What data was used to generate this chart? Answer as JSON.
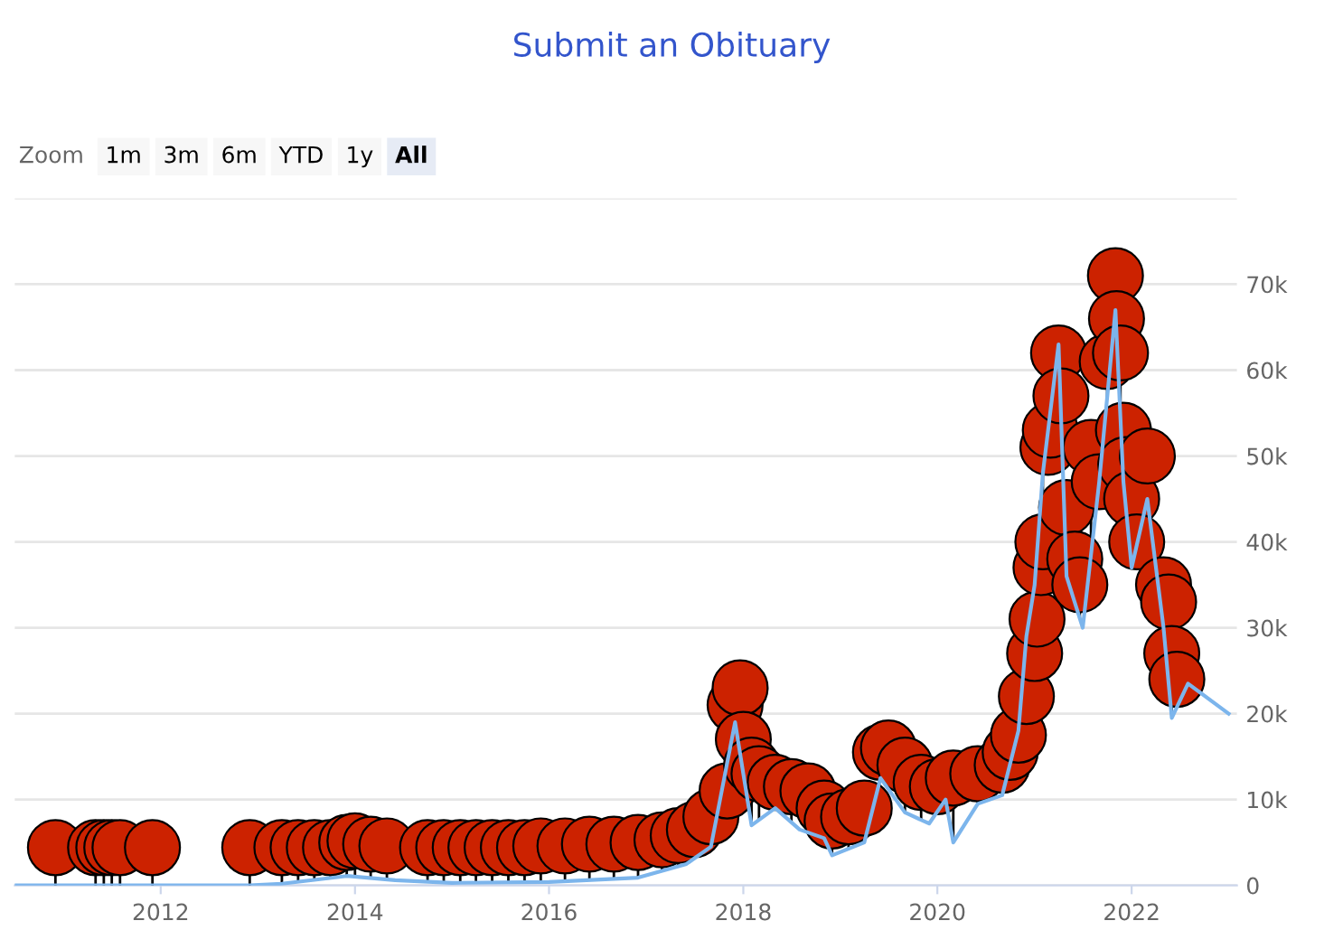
{
  "chart_data": {
    "type": "line",
    "title": "Submit an Obituary",
    "annotations": [
      "Zoom",
      "1m",
      "3m",
      "6m",
      "YTD",
      "1y",
      "All"
    ],
    "xlim": [
      "2010-07",
      "2023-02"
    ],
    "xticks": [
      "2012",
      "2014",
      "2016",
      "2018",
      "2020",
      "2022"
    ],
    "ylim": [
      0,
      80000
    ],
    "yticks": [
      0,
      {
        "value": 10000,
        "label": "10k"
      },
      {
        "value": 20000,
        "label": "20k"
      },
      {
        "value": 30000,
        "label": "30k"
      },
      {
        "value": 40000,
        "label": "40k"
      },
      {
        "value": 50000,
        "label": "50k"
      },
      {
        "value": 60000,
        "label": "60k"
      },
      {
        "value": 70000,
        "label": "70k"
      },
      {
        "value": 80000,
        "label": null
      }
    ],
    "grid": "y",
    "legend": false,
    "series": [
      {
        "color": "#7cb5ec",
        "marker": "none",
        "x": [
          "2010-07",
          "2011-06",
          "2011-12",
          "2012-12",
          "2013-04",
          "2013-12",
          "2014-06",
          "2015-01",
          "2016-01",
          "2016-12",
          "2017-06",
          "2017-09",
          "2017-12",
          "2018-02",
          "2018-05",
          "2018-08",
          "2018-11",
          "2018-12",
          "2019-04",
          "2019-06",
          "2019-09",
          "2019-12",
          "2020-02",
          "2020-03",
          "2020-06",
          "2020-09",
          "2020-11",
          "2020-12",
          "2021-01",
          "2021-02",
          "2021-04",
          "2021-05",
          "2021-07",
          "2021-09",
          "2021-11",
          "2021-12",
          "2022-01",
          "2022-03",
          "2022-05",
          "2022-06",
          "2022-08",
          "2023-01"
        ],
        "values": [
          0,
          0,
          0,
          0,
          200,
          1100,
          600,
          300,
          400,
          900,
          2500,
          4500,
          19000,
          7000,
          9000,
          6500,
          5500,
          3500,
          5000,
          12500,
          8500,
          7200,
          10000,
          5000,
          9500,
          10500,
          18000,
          29000,
          35000,
          48000,
          63000,
          36000,
          30000,
          47000,
          67000,
          47000,
          37000,
          45000,
          30000,
          19500,
          23500,
          20000
        ]
      },
      {
        "type": "scatter",
        "color": "#cc2200",
        "marker": "circle",
        "x": [
          "2010-12",
          "2011-05",
          "2011-06",
          "2011-07",
          "2011-08",
          "2011-12",
          "2012-12",
          "2013-04",
          "2013-06",
          "2013-08",
          "2013-10",
          "2013-12",
          "2014-01",
          "2014-03",
          "2014-05",
          "2014-10",
          "2014-12",
          "2015-02",
          "2015-04",
          "2015-06",
          "2015-08",
          "2015-10",
          "2015-12",
          "2016-03",
          "2016-06",
          "2016-09",
          "2016-12",
          "2017-03",
          "2017-05",
          "2017-07",
          "2017-09",
          "2017-11",
          "2017-12",
          "2017-12-20",
          "2018-01",
          "2018-02",
          "2018-03",
          "2018-05",
          "2018-07",
          "2018-09",
          "2018-11",
          "2018-12",
          "2019-02",
          "2019-04",
          "2019-06",
          "2019-07",
          "2019-09",
          "2019-11",
          "2020-01",
          "2020-03",
          "2020-06",
          "2020-09",
          "2020-10",
          "2020-11",
          "2020-12",
          "2021-01",
          "2021-01-10",
          "2021-01-25",
          "2021-02",
          "2021-02-20",
          "2021-03",
          "2021-04",
          "2021-04-10",
          "2021-05",
          "2021-06",
          "2021-06-20",
          "2021-08",
          "2021-09",
          "2021-10",
          "2021-11",
          "2021-11-05",
          "2021-11-20",
          "2021-12",
          "2021-12-10",
          "2022-01",
          "2022-01-20",
          "2022-03",
          "2022-05",
          "2022-05-20",
          "2022-06",
          "2022-06-20"
        ],
        "values": [
          4400,
          4400,
          4400,
          4400,
          4400,
          4400,
          4400,
          4400,
          4400,
          4400,
          4400,
          5000,
          5200,
          4800,
          4600,
          4400,
          4400,
          4400,
          4400,
          4400,
          4400,
          4400,
          4600,
          4600,
          4800,
          4800,
          5000,
          5300,
          5800,
          6500,
          8000,
          11000,
          21000,
          23000,
          17000,
          14000,
          13000,
          12000,
          11500,
          11000,
          9000,
          7500,
          8000,
          9000,
          15500,
          16000,
          14000,
          12000,
          11500,
          12500,
          13000,
          14000,
          15500,
          17500,
          22000,
          27000,
          31000,
          37000,
          40000,
          51000,
          53000,
          62000,
          57000,
          44000,
          38000,
          35000,
          51000,
          47000,
          61000,
          71000,
          66000,
          62000,
          53000,
          49000,
          45000,
          40000,
          50000,
          35000,
          33000,
          27000,
          24000
        ],
        "line_style": "solid"
      }
    ]
  }
}
